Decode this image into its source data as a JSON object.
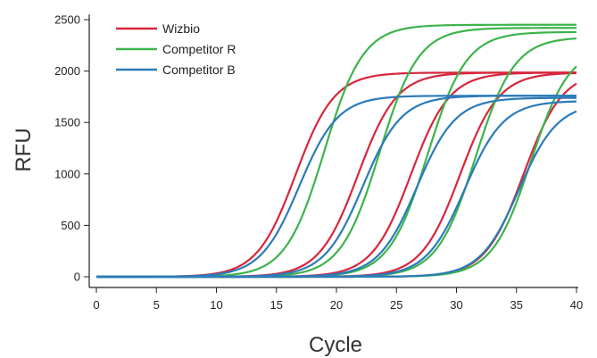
{
  "chart_data": {
    "type": "line",
    "title": "",
    "xlabel": "Cycle",
    "ylabel": "RFU",
    "xlim": [
      0,
      40
    ],
    "ylim": [
      -50,
      2550
    ],
    "x_ticks": [
      0,
      5,
      10,
      15,
      20,
      25,
      30,
      35,
      40
    ],
    "y_ticks": [
      0,
      500,
      1000,
      1500,
      2000,
      2500
    ],
    "grid": false,
    "legend_position": "top-left",
    "series": [
      {
        "name": "Wizbio",
        "color": "#d7263d",
        "curves": [
          {
            "midpoint": 16.6,
            "plateau": 1985
          },
          {
            "midpoint": 21.8,
            "plateau": 1985
          },
          {
            "midpoint": 26.2,
            "plateau": 1985
          },
          {
            "midpoint": 30.3,
            "plateau": 1985
          },
          {
            "midpoint": 35.6,
            "plateau": 2000
          }
        ]
      },
      {
        "name": "Competitor R",
        "color": "#3cb44b",
        "curves": [
          {
            "midpoint": 19.0,
            "plateau": 2450
          },
          {
            "midpoint": 23.6,
            "plateau": 2420
          },
          {
            "midpoint": 27.6,
            "plateau": 2380
          },
          {
            "midpoint": 31.6,
            "plateau": 2330
          },
          {
            "midpoint": 36.2,
            "plateau": 2240
          }
        ]
      },
      {
        "name": "Competitor B",
        "color": "#2b7bba",
        "curves": [
          {
            "midpoint": 16.9,
            "plateau": 1760
          },
          {
            "midpoint": 22.2,
            "plateau": 1760
          },
          {
            "midpoint": 26.7,
            "plateau": 1740
          },
          {
            "midpoint": 30.7,
            "plateau": 1710
          },
          {
            "midpoint": 35.2,
            "plateau": 1690
          }
        ]
      }
    ]
  }
}
